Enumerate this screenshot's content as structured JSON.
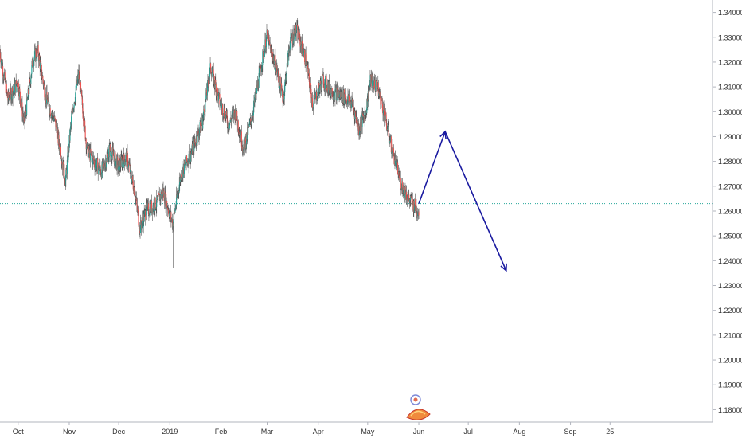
{
  "chart_data": {
    "type": "candlestick",
    "title": "",
    "xlabel": "",
    "ylabel": "",
    "ylim": [
      1.175,
      1.345
    ],
    "grid": false,
    "legend": "none",
    "colors": {
      "up": "#26a69a",
      "down": "#ef5350",
      "wick": "#555555",
      "arrow": "#1a1aa0",
      "level": "#26a69a"
    },
    "x_tick_labels": [
      "Oct",
      "Nov",
      "Dec",
      "2019",
      "Feb",
      "Mar",
      "Apr",
      "May",
      "Jun",
      "Jul",
      "Aug",
      "Sep",
      "25"
    ],
    "y_tick_labels": [
      "1.18000",
      "1.19000",
      "1.20000",
      "1.21000",
      "1.22000",
      "1.23000",
      "1.24000",
      "1.25000",
      "1.26000",
      "1.27000",
      "1.28000",
      "1.29000",
      "1.30000",
      "1.31000",
      "1.32000",
      "1.33000",
      "1.34000"
    ],
    "horizontal_level": 1.263,
    "price_path": [
      [
        "2018-09-20",
        1.325
      ],
      [
        "2018-09-25",
        1.305
      ],
      [
        "2018-10-01",
        1.312
      ],
      [
        "2018-10-05",
        1.295
      ],
      [
        "2018-10-10",
        1.32
      ],
      [
        "2018-10-13",
        1.325
      ],
      [
        "2018-10-18",
        1.306
      ],
      [
        "2018-10-24",
        1.295
      ],
      [
        "2018-10-30",
        1.272
      ],
      [
        "2018-11-03",
        1.3
      ],
      [
        "2018-11-07",
        1.315
      ],
      [
        "2018-11-12",
        1.285
      ],
      [
        "2018-11-16",
        1.28
      ],
      [
        "2018-11-21",
        1.276
      ],
      [
        "2018-11-26",
        1.285
      ],
      [
        "2018-12-01",
        1.278
      ],
      [
        "2018-12-06",
        1.282
      ],
      [
        "2018-12-11",
        1.268
      ],
      [
        "2018-12-14",
        1.253
      ],
      [
        "2018-12-18",
        1.26
      ],
      [
        "2018-12-24",
        1.263
      ],
      [
        "2018-12-28",
        1.268
      ],
      [
        "2019-01-03",
        1.255
      ],
      [
        "2019-01-08",
        1.275
      ],
      [
        "2019-01-14",
        1.283
      ],
      [
        "2019-01-21",
        1.296
      ],
      [
        "2019-01-26",
        1.318
      ],
      [
        "2019-01-31",
        1.305
      ],
      [
        "2019-02-06",
        1.295
      ],
      [
        "2019-02-10",
        1.3
      ],
      [
        "2019-02-15",
        1.285
      ],
      [
        "2019-02-20",
        1.298
      ],
      [
        "2019-02-26",
        1.32
      ],
      [
        "2019-03-01",
        1.33
      ],
      [
        "2019-03-06",
        1.32
      ],
      [
        "2019-03-11",
        1.305
      ],
      [
        "2019-03-15",
        1.328
      ],
      [
        "2019-03-19",
        1.333
      ],
      [
        "2019-03-25",
        1.32
      ],
      [
        "2019-03-29",
        1.303
      ],
      [
        "2019-04-04",
        1.313
      ],
      [
        "2019-04-10",
        1.308
      ],
      [
        "2019-04-17",
        1.306
      ],
      [
        "2019-04-22",
        1.303
      ],
      [
        "2019-04-26",
        1.293
      ],
      [
        "2019-04-30",
        1.3
      ],
      [
        "2019-05-03",
        1.313
      ],
      [
        "2019-05-07",
        1.31
      ],
      [
        "2019-05-10",
        1.303
      ],
      [
        "2019-05-16",
        1.285
      ],
      [
        "2019-05-21",
        1.272
      ],
      [
        "2019-05-26",
        1.265
      ],
      [
        "2019-06-01",
        1.26
      ]
    ],
    "projection_arrows": [
      {
        "from": [
          "2019-06-01",
          1.263
        ],
        "to": [
          "2019-06-17",
          1.292
        ]
      },
      {
        "from": [
          "2019-06-17",
          1.292
        ],
        "to": [
          "2019-07-24",
          1.236
        ]
      }
    ]
  }
}
